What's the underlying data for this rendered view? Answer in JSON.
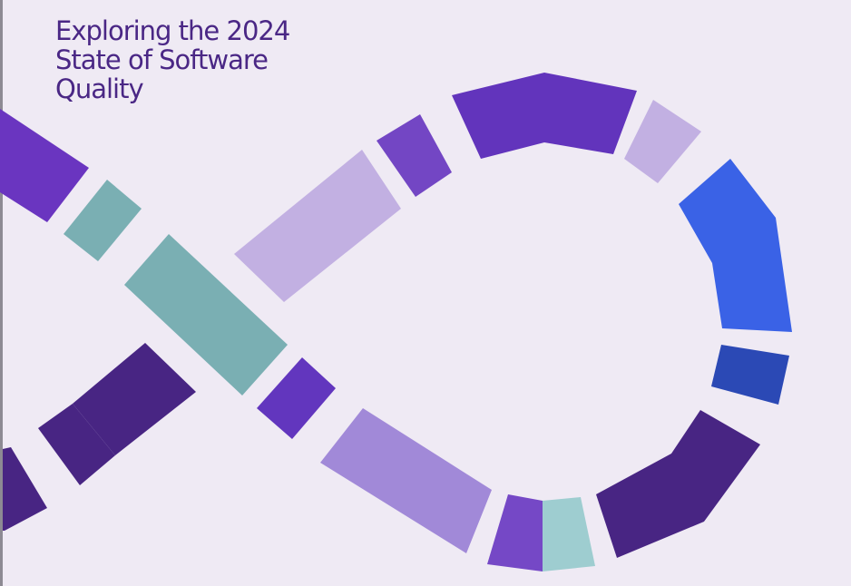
{
  "header": {
    "title_lines": [
      "Exploring the 2024",
      "State of Software",
      "Quality"
    ]
  }
}
